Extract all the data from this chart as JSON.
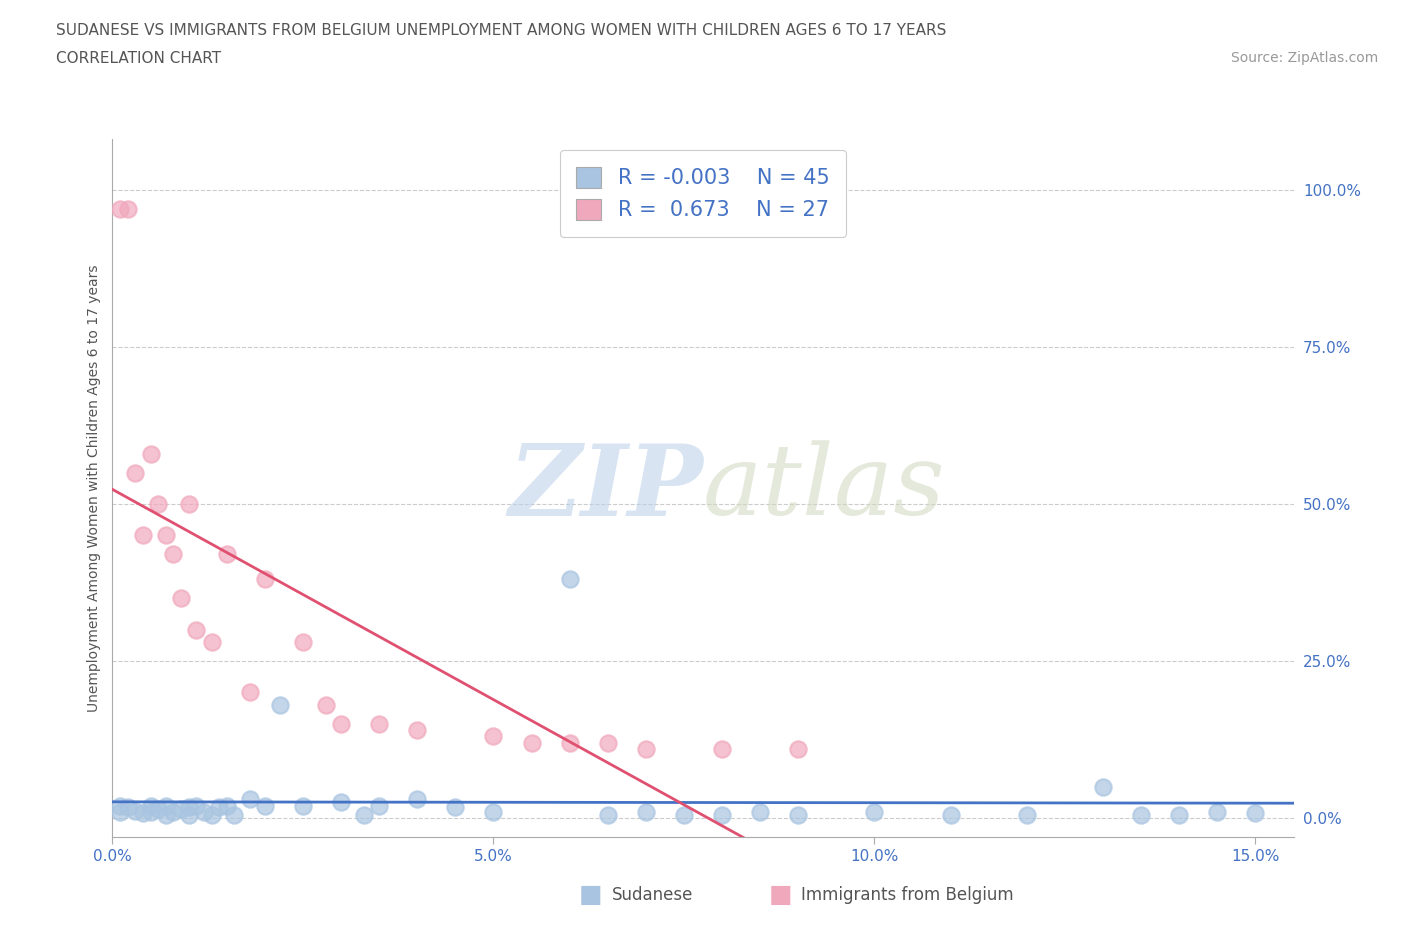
{
  "title_line1": "SUDANESE VS IMMIGRANTS FROM BELGIUM UNEMPLOYMENT AMONG WOMEN WITH CHILDREN AGES 6 TO 17 YEARS",
  "title_line2": "CORRELATION CHART",
  "source": "Source: ZipAtlas.com",
  "ylabel": "Unemployment Among Women with Children Ages 6 to 17 years",
  "bg_color": "#ffffff",
  "sudanese_color": "#a8c4e0",
  "belgium_color": "#f0a8bc",
  "sudanese_line_color": "#4472c4",
  "belgium_line_color": "#e05070",
  "sudanese_r": -0.003,
  "sudanese_n": 45,
  "belgium_r": 0.673,
  "belgium_n": 27,
  "legend_label1": "Sudanese",
  "legend_label2": "Immigrants from Belgium",
  "watermark_zip": "ZIP",
  "watermark_atlas": "atlas",
  "xlim": [
    0.0,
    0.155
  ],
  "ylim": [
    -0.03,
    1.08
  ],
  "xticks": [
    0.0,
    0.05,
    0.1,
    0.15
  ],
  "yticks": [
    0.0,
    0.25,
    0.5,
    0.75,
    1.0
  ],
  "xtick_labels": [
    "0.0%",
    "5.0%",
    "10.0%",
    "15.0%"
  ],
  "ytick_labels": [
    "0.0%",
    "25.0%",
    "50.0%",
    "75.0%",
    "100.0%"
  ],
  "sudanese_x": [
    0.001,
    0.001,
    0.002,
    0.003,
    0.004,
    0.005,
    0.005,
    0.006,
    0.007,
    0.007,
    0.008,
    0.009,
    0.01,
    0.01,
    0.011,
    0.012,
    0.013,
    0.014,
    0.015,
    0.016,
    0.018,
    0.02,
    0.022,
    0.025,
    0.03,
    0.033,
    0.035,
    0.04,
    0.045,
    0.05,
    0.06,
    0.065,
    0.07,
    0.075,
    0.08,
    0.085,
    0.09,
    0.1,
    0.11,
    0.12,
    0.13,
    0.135,
    0.14,
    0.145,
    0.15
  ],
  "sudanese_y": [
    0.02,
    0.01,
    0.018,
    0.012,
    0.008,
    0.02,
    0.01,
    0.015,
    0.02,
    0.005,
    0.01,
    0.015,
    0.018,
    0.005,
    0.02,
    0.01,
    0.005,
    0.018,
    0.02,
    0.005,
    0.03,
    0.02,
    0.18,
    0.02,
    0.025,
    0.005,
    0.02,
    0.03,
    0.018,
    0.01,
    0.38,
    0.005,
    0.01,
    0.005,
    0.005,
    0.01,
    0.005,
    0.01,
    0.005,
    0.005,
    0.05,
    0.005,
    0.005,
    0.01,
    0.008
  ],
  "belgium_x": [
    0.001,
    0.002,
    0.003,
    0.004,
    0.005,
    0.006,
    0.007,
    0.008,
    0.009,
    0.01,
    0.011,
    0.013,
    0.015,
    0.018,
    0.02,
    0.025,
    0.028,
    0.03,
    0.035,
    0.04,
    0.05,
    0.055,
    0.06,
    0.065,
    0.07,
    0.08,
    0.09
  ],
  "belgium_y": [
    0.97,
    0.97,
    0.55,
    0.45,
    0.58,
    0.5,
    0.45,
    0.42,
    0.35,
    0.5,
    0.3,
    0.28,
    0.42,
    0.2,
    0.38,
    0.28,
    0.18,
    0.15,
    0.15,
    0.14,
    0.13,
    0.12,
    0.12,
    0.12,
    0.11,
    0.11,
    0.11
  ]
}
